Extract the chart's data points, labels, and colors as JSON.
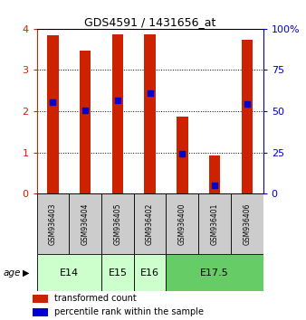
{
  "title": "GDS4591 / 1431656_at",
  "samples": [
    "GSM936403",
    "GSM936404",
    "GSM936405",
    "GSM936402",
    "GSM936400",
    "GSM936401",
    "GSM936406"
  ],
  "transformed_counts": [
    3.85,
    3.48,
    3.87,
    3.87,
    1.87,
    0.92,
    3.73
  ],
  "percentile_ranks": [
    2.22,
    2.03,
    2.27,
    2.45,
    0.97,
    0.2,
    2.17
  ],
  "bar_color": "#cc2200",
  "percentile_color": "#0000cc",
  "ylim_left": [
    0,
    4
  ],
  "ylim_right": [
    0,
    100
  ],
  "yticks_left": [
    0,
    1,
    2,
    3,
    4
  ],
  "yticks_right": [
    0,
    25,
    50,
    75,
    100
  ],
  "left_tick_color": "#cc2200",
  "right_tick_color": "#0000cc",
  "legend_labels": [
    "transformed count",
    "percentile rank within the sample"
  ],
  "background_color": "#ffffff",
  "bar_width": 0.35,
  "age_groups": [
    {
      "label": "E14",
      "span": [
        0,
        1
      ],
      "color": "#ccffcc"
    },
    {
      "label": "E15",
      "span": [
        2,
        2
      ],
      "color": "#ccffcc"
    },
    {
      "label": "E16",
      "span": [
        3,
        3
      ],
      "color": "#ccffcc"
    },
    {
      "label": "E17.5",
      "span": [
        4,
        6
      ],
      "color": "#66cc66"
    }
  ]
}
